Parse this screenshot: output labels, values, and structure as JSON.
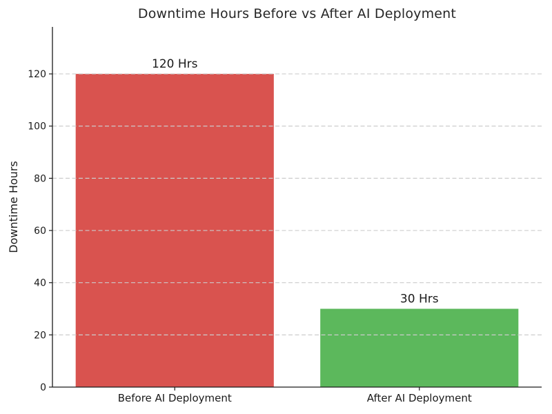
{
  "chart_data": {
    "type": "bar",
    "title": "Downtime Hours Before vs After AI Deployment",
    "categories": [
      "Before AI Deployment",
      "After AI Deployment"
    ],
    "values": [
      120,
      30
    ],
    "bar_labels": [
      "120 Hrs",
      "30 Hrs"
    ],
    "colors": [
      "#d9534f",
      "#5cb85c"
    ],
    "xlabel": "",
    "ylabel": "Downtime Hours",
    "ylim": [
      0,
      138
    ],
    "yticks": [
      0,
      20,
      40,
      60,
      80,
      100,
      120
    ],
    "grid": {
      "axis": "y",
      "style": "dashed",
      "color": "#cccccc",
      "on_top_of_bars": true
    },
    "legend": "none",
    "background": "#ffffff",
    "bar_width_frac": 0.81
  }
}
